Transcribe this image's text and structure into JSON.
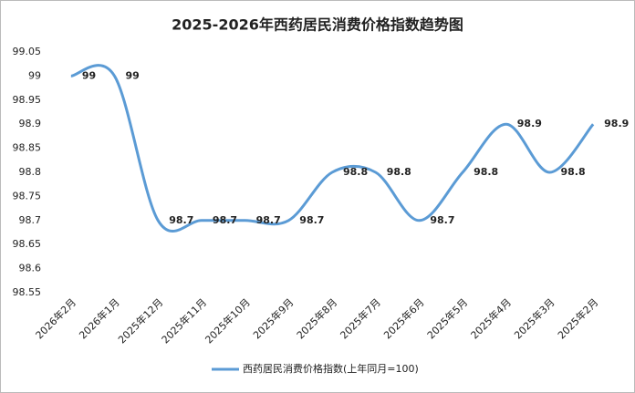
{
  "chart_data": {
    "type": "line",
    "title": "2025-2026年西药居民消费价格指数趋势图",
    "categories": [
      "2026年2月",
      "2026年1月",
      "2025年12月",
      "2025年11月",
      "2025年10月",
      "2025年9月",
      "2025年8月",
      "2025年7月",
      "2025年6月",
      "2025年5月",
      "2025年4月",
      "2025年3月",
      "2025年2月"
    ],
    "series": [
      {
        "name": "西药居民消费价格指数(上年同月=100)",
        "color": "#5b9bd5",
        "values": [
          99,
          99,
          98.7,
          98.7,
          98.7,
          98.7,
          98.8,
          98.8,
          98.7,
          98.8,
          98.9,
          98.8,
          98.9
        ]
      }
    ],
    "ylim": [
      98.55,
      99.05
    ],
    "yticks": [
      98.55,
      98.6,
      98.65,
      98.7,
      98.75,
      98.8,
      98.85,
      98.9,
      98.95,
      99,
      99.05
    ],
    "grid": false,
    "smooth": true,
    "legend": "bottom"
  }
}
